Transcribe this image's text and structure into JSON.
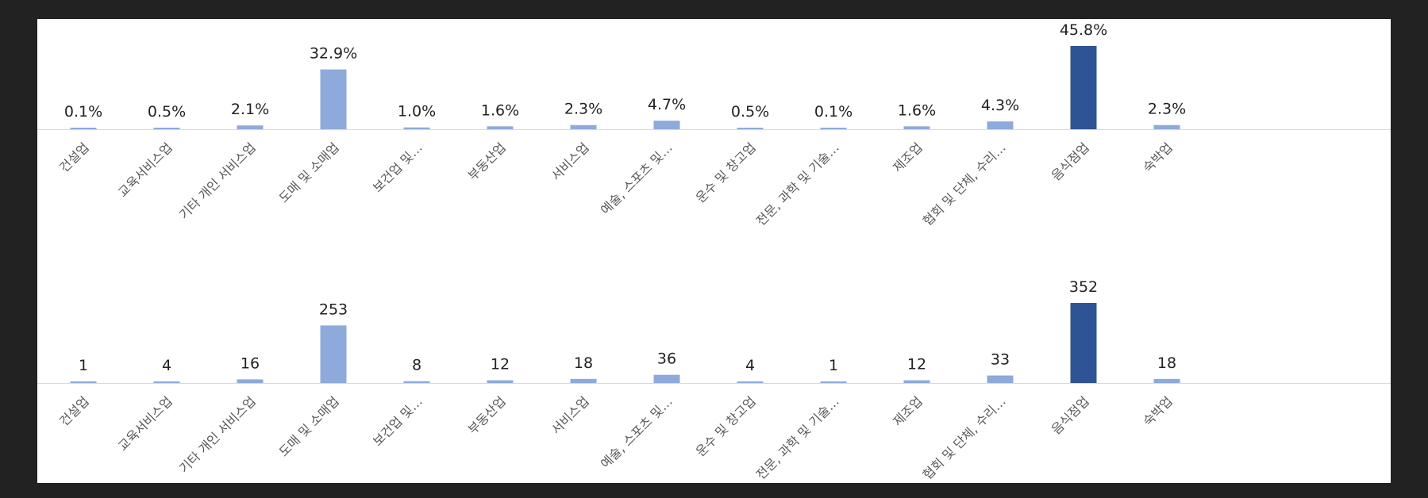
{
  "colors": {
    "bar": "#8eaadb",
    "highlight": "#2f5496",
    "axis": "#d9d9d9",
    "background": "#ffffff",
    "frame": "#222222"
  },
  "chart_data": [
    {
      "type": "bar",
      "categories": [
        "건설업",
        "교육서비스업",
        "기타 개인 서비스업",
        "도매 및 소매업",
        "보건업 및…",
        "부동산업",
        "서비스업",
        "예술, 스포츠 및…",
        "운수 및 창고업",
        "전문, 과학 및 기술…",
        "제조업",
        "협회 및 단체, 수리…",
        "음식점업",
        "숙박업"
      ],
      "values": [
        0.1,
        0.5,
        2.1,
        32.9,
        1.0,
        1.6,
        2.3,
        4.7,
        0.5,
        0.1,
        1.6,
        4.3,
        45.8,
        2.3
      ],
      "data_labels": [
        "0.1%",
        "0.5%",
        "2.1%",
        "32.9%",
        "1.0%",
        "1.6%",
        "2.3%",
        "4.7%",
        "0.5%",
        "0.1%",
        "1.6%",
        "4.3%",
        "45.8%",
        "2.3%"
      ],
      "highlight_index": 12,
      "ylim": [
        0,
        45.8
      ],
      "grid": false,
      "legend": "none"
    },
    {
      "type": "bar",
      "categories": [
        "건설업",
        "교육서비스업",
        "기타 개인 서비스업",
        "도매 및 소매업",
        "보건업 및…",
        "부동산업",
        "서비스업",
        "예술, 스포츠 및…",
        "운수 및 창고업",
        "전문, 과학 및 기술…",
        "제조업",
        "협회 및 단체, 수리…",
        "음식점업",
        "숙박업"
      ],
      "values": [
        1,
        4,
        16,
        253,
        8,
        12,
        18,
        36,
        4,
        1,
        12,
        33,
        352,
        18
      ],
      "data_labels": [
        "1",
        "4",
        "16",
        "253",
        "8",
        "12",
        "18",
        "36",
        "4",
        "1",
        "12",
        "33",
        "352",
        "18"
      ],
      "highlight_index": 12,
      "ylim": [
        0,
        352
      ],
      "grid": false,
      "legend": "none"
    }
  ]
}
